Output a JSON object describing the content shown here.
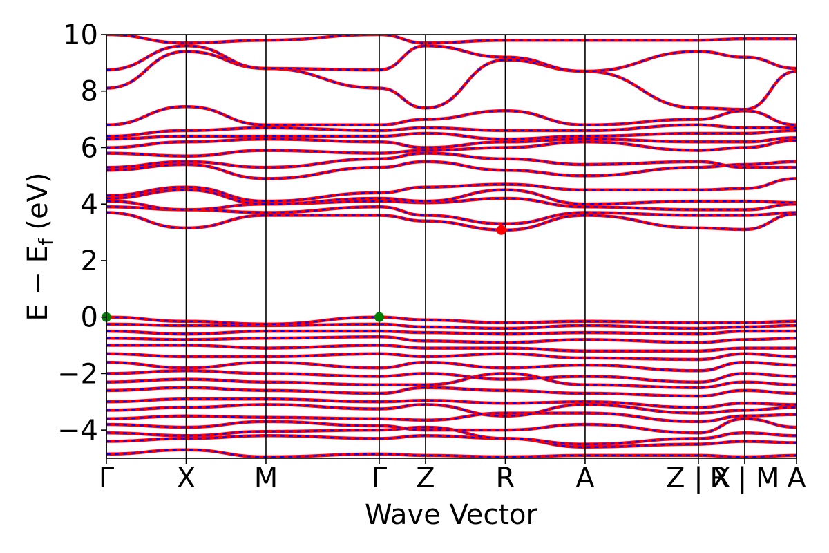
{
  "chart_data": {
    "type": "line",
    "title": "",
    "xlabel": "Wave Vector",
    "ylabel": "E − E",
    "ylabel_sub": "f",
    "ylabel_unit": " (eV)",
    "ylim": [
      -5,
      10
    ],
    "yticks": [
      {
        "value": 10,
        "label": "10"
      },
      {
        "value": 8,
        "label": "8"
      },
      {
        "value": 6,
        "label": "6"
      },
      {
        "value": 4,
        "label": "4"
      },
      {
        "value": 2,
        "label": "2"
      },
      {
        "value": 0,
        "label": "0"
      },
      {
        "value": -2,
        "label": "−2"
      },
      {
        "value": -4,
        "label": "−4"
      }
    ],
    "xlim": [
      0,
      8.65
    ],
    "kpoints": [
      {
        "x": 0.0,
        "label": "Γ"
      },
      {
        "x": 1.0,
        "label": "X"
      },
      {
        "x": 2.0,
        "label": "M"
      },
      {
        "x": 3.42,
        "label": "Γ"
      },
      {
        "x": 4.0,
        "label": "Z"
      },
      {
        "x": 5.0,
        "label": "R"
      },
      {
        "x": 6.0,
        "label": "A"
      },
      {
        "x": 7.42,
        "label": "Z | X"
      },
      {
        "x": 8.0,
        "label": "R | M"
      },
      {
        "x": 8.65,
        "label": "A"
      }
    ],
    "grid": false,
    "legend": "none",
    "series_styles": [
      {
        "color": "#ff0000",
        "style": "solid"
      },
      {
        "color": "#0000ff",
        "style": "dashed"
      }
    ],
    "markers": [
      {
        "x": 0.0,
        "y": 0.0,
        "color": "#008000",
        "kind": "vbm"
      },
      {
        "x": 3.42,
        "y": 0.0,
        "color": "#008000",
        "kind": "vbm"
      },
      {
        "x": 4.95,
        "y": 3.08,
        "color": "#ff0000",
        "kind": "cbm"
      }
    ],
    "bands": [
      [
        [
          0,
          -4.85
        ],
        [
          1,
          -4.7
        ],
        [
          2,
          -4.95
        ],
        [
          3.42,
          -4.85
        ],
        [
          4,
          -4.9
        ],
        [
          5,
          -4.95
        ],
        [
          6,
          -4.9
        ],
        [
          7.42,
          -4.9
        ],
        [
          8,
          -4.95
        ],
        [
          8.65,
          -4.9
        ]
      ],
      [
        [
          0,
          -4.4
        ],
        [
          1,
          -4.3
        ],
        [
          2,
          -4.2
        ],
        [
          3.42,
          -4.3
        ],
        [
          4,
          -4.2
        ],
        [
          5,
          -4.3
        ],
        [
          6,
          -4.6
        ],
        [
          7.42,
          -4.5
        ],
        [
          8,
          -4.4
        ],
        [
          8.65,
          -4.45
        ]
      ],
      [
        [
          0,
          -4.1
        ],
        [
          1,
          -4.2
        ],
        [
          2,
          -4.05
        ],
        [
          3.42,
          -4.0
        ],
        [
          4,
          -3.9
        ],
        [
          5,
          -4.3
        ],
        [
          6,
          -4.5
        ],
        [
          7.42,
          -4.3
        ],
        [
          8,
          -4.1
        ],
        [
          8.65,
          -4.2
        ]
      ],
      [
        [
          0,
          -3.8
        ],
        [
          1,
          -3.9
        ],
        [
          2,
          -3.7
        ],
        [
          3.42,
          -3.85
        ],
        [
          4,
          -4.0
        ],
        [
          5,
          -4.0
        ],
        [
          6,
          -3.8
        ],
        [
          7.42,
          -4.1
        ],
        [
          8,
          -3.6
        ],
        [
          8.65,
          -3.9
        ]
      ],
      [
        [
          0,
          -3.6
        ],
        [
          1,
          -3.5
        ],
        [
          2,
          -3.55
        ],
        [
          3.42,
          -3.6
        ],
        [
          4,
          -3.65
        ],
        [
          5,
          -3.4
        ],
        [
          6,
          -3.4
        ],
        [
          7.42,
          -3.7
        ],
        [
          8,
          -3.5
        ],
        [
          8.65,
          -3.45
        ]
      ],
      [
        [
          0,
          -3.3
        ],
        [
          1,
          -3.2
        ],
        [
          2,
          -3.1
        ],
        [
          3.42,
          -3.25
        ],
        [
          4,
          -3.1
        ],
        [
          5,
          -3.5
        ],
        [
          6,
          -3.1
        ],
        [
          7.42,
          -3.4
        ],
        [
          8,
          -3.3
        ],
        [
          8.65,
          -3.2
        ]
      ],
      [
        [
          0,
          -3.0
        ],
        [
          1,
          -2.9
        ],
        [
          2,
          -2.9
        ],
        [
          3.42,
          -3.0
        ],
        [
          4,
          -2.95
        ],
        [
          5,
          -3.05
        ],
        [
          6,
          -3.0
        ],
        [
          7.42,
          -3.2
        ],
        [
          8,
          -3.05
        ],
        [
          8.65,
          -3.1
        ]
      ],
      [
        [
          0,
          -2.6
        ],
        [
          1,
          -2.5
        ],
        [
          2,
          -2.6
        ],
        [
          3.42,
          -2.7
        ],
        [
          4,
          -2.5
        ],
        [
          5,
          -2.6
        ],
        [
          6,
          -2.7
        ],
        [
          7.42,
          -2.8
        ],
        [
          8,
          -2.6
        ],
        [
          8.65,
          -2.7
        ]
      ],
      [
        [
          0,
          -2.3
        ],
        [
          1,
          -2.2
        ],
        [
          2,
          -2.3
        ],
        [
          3.42,
          -2.4
        ],
        [
          4,
          -2.4
        ],
        [
          5,
          -2.0
        ],
        [
          6,
          -2.4
        ],
        [
          7.42,
          -2.5
        ],
        [
          8,
          -2.3
        ],
        [
          8.65,
          -2.4
        ]
      ],
      [
        [
          0,
          -2.0
        ],
        [
          1,
          -1.9
        ],
        [
          2,
          -2.0
        ],
        [
          3.42,
          -2.1
        ],
        [
          4,
          -2.0
        ],
        [
          5,
          -2.2
        ],
        [
          6,
          -2.1
        ],
        [
          7.42,
          -2.3
        ],
        [
          8,
          -2.0
        ],
        [
          8.65,
          -2.1
        ]
      ],
      [
        [
          0,
          -1.6
        ],
        [
          1,
          -1.8
        ],
        [
          2,
          -1.6
        ],
        [
          3.42,
          -1.8
        ],
        [
          4,
          -1.6
        ],
        [
          5,
          -1.8
        ],
        [
          6,
          -1.7
        ],
        [
          7.42,
          -1.9
        ],
        [
          8,
          -1.6
        ],
        [
          8.65,
          -1.7
        ]
      ],
      [
        [
          0,
          -1.3
        ],
        [
          1,
          -1.4
        ],
        [
          2,
          -1.4
        ],
        [
          3.42,
          -1.3
        ],
        [
          4,
          -1.4
        ],
        [
          5,
          -1.3
        ],
        [
          6,
          -1.45
        ],
        [
          7.42,
          -1.5
        ],
        [
          8,
          -1.3
        ],
        [
          8.65,
          -1.4
        ]
      ],
      [
        [
          0,
          -1.0
        ],
        [
          1,
          -1.0
        ],
        [
          2,
          -1.1
        ],
        [
          3.42,
          -1.0
        ],
        [
          4,
          -1.1
        ],
        [
          5,
          -1.1
        ],
        [
          6,
          -1.2
        ],
        [
          7.42,
          -1.2
        ],
        [
          8,
          -1.1
        ],
        [
          8.65,
          -1.1
        ]
      ],
      [
        [
          0,
          -0.75
        ],
        [
          1,
          -0.8
        ],
        [
          2,
          -0.75
        ],
        [
          3.42,
          -0.7
        ],
        [
          4,
          -0.85
        ],
        [
          5,
          -0.9
        ],
        [
          6,
          -0.8
        ],
        [
          7.42,
          -0.9
        ],
        [
          8,
          -0.8
        ],
        [
          8.65,
          -0.75
        ]
      ],
      [
        [
          0,
          -0.5
        ],
        [
          1,
          -0.6
        ],
        [
          2,
          -0.5
        ],
        [
          3.42,
          -0.5
        ],
        [
          4,
          -0.55
        ],
        [
          5,
          -0.6
        ],
        [
          6,
          -0.55
        ],
        [
          7.42,
          -0.6
        ],
        [
          8,
          -0.5
        ],
        [
          8.65,
          -0.5
        ]
      ],
      [
        [
          0,
          -0.25
        ],
        [
          1,
          -0.3
        ],
        [
          2,
          -0.3
        ],
        [
          3.42,
          -0.25
        ],
        [
          4,
          -0.35
        ],
        [
          5,
          -0.4
        ],
        [
          6,
          -0.3
        ],
        [
          7.42,
          -0.4
        ],
        [
          8,
          -0.35
        ],
        [
          8.65,
          -0.3
        ]
      ],
      [
        [
          0,
          0.0
        ],
        [
          1,
          -0.15
        ],
        [
          2,
          -0.25
        ],
        [
          3.42,
          0.0
        ],
        [
          4,
          -0.1
        ],
        [
          5,
          -0.2
        ],
        [
          6,
          -0.15
        ],
        [
          7.42,
          -0.2
        ],
        [
          8,
          -0.2
        ],
        [
          8.65,
          -0.15
        ]
      ],
      [
        [
          0,
          3.7
        ],
        [
          1,
          3.15
        ],
        [
          2,
          3.6
        ],
        [
          3.42,
          3.6
        ],
        [
          4,
          3.4
        ],
        [
          5,
          3.08
        ],
        [
          6,
          3.6
        ],
        [
          7.42,
          3.15
        ],
        [
          8,
          3.1
        ],
        [
          8.65,
          3.65
        ]
      ],
      [
        [
          0,
          3.9
        ],
        [
          1,
          3.8
        ],
        [
          2,
          3.7
        ],
        [
          3.42,
          3.9
        ],
        [
          4,
          3.6
        ],
        [
          5,
          3.3
        ],
        [
          6,
          3.7
        ],
        [
          7.42,
          3.6
        ],
        [
          8,
          3.6
        ],
        [
          8.65,
          3.7
        ]
      ],
      [
        [
          0,
          4.1
        ],
        [
          1,
          3.8
        ],
        [
          2,
          4.0
        ],
        [
          3.42,
          4.1
        ],
        [
          4,
          4.05
        ],
        [
          5,
          4.2
        ],
        [
          6,
          3.9
        ],
        [
          7.42,
          3.8
        ],
        [
          8,
          3.8
        ],
        [
          8.65,
          4.0
        ]
      ],
      [
        [
          0,
          4.2
        ],
        [
          1,
          4.5
        ],
        [
          2,
          4.0
        ],
        [
          3.42,
          4.2
        ],
        [
          4,
          4.1
        ],
        [
          5,
          4.5
        ],
        [
          6,
          4.0
        ],
        [
          7.42,
          4.1
        ],
        [
          8,
          4.1
        ],
        [
          8.65,
          4.05
        ]
      ],
      [
        [
          0,
          4.3
        ],
        [
          1,
          4.6
        ],
        [
          2,
          4.1
        ],
        [
          3.42,
          4.4
        ],
        [
          4,
          4.6
        ],
        [
          5,
          4.7
        ],
        [
          6,
          4.5
        ],
        [
          7.42,
          4.5
        ],
        [
          8,
          4.55
        ],
        [
          8.65,
          4.9
        ]
      ],
      [
        [
          0,
          5.2
        ],
        [
          1,
          5.4
        ],
        [
          2,
          4.9
        ],
        [
          3.42,
          5.3
        ],
        [
          4,
          5.5
        ],
        [
          5,
          5.2
        ],
        [
          6,
          5.0
        ],
        [
          7.42,
          5.3
        ],
        [
          8,
          5.4
        ],
        [
          8.65,
          5.5
        ]
      ],
      [
        [
          0,
          5.3
        ],
        [
          1,
          5.5
        ],
        [
          2,
          5.3
        ],
        [
          3.42,
          5.6
        ],
        [
          4,
          5.8
        ],
        [
          5,
          5.6
        ],
        [
          6,
          5.4
        ],
        [
          7.42,
          5.5
        ],
        [
          8,
          5.3
        ],
        [
          8.65,
          5.3
        ]
      ],
      [
        [
          0,
          5.8
        ],
        [
          1,
          5.7
        ],
        [
          2,
          5.9
        ],
        [
          3.42,
          5.8
        ],
        [
          4,
          5.9
        ],
        [
          5,
          6.0
        ],
        [
          6,
          6.2
        ],
        [
          7.42,
          5.9
        ],
        [
          8,
          6.0
        ],
        [
          8.65,
          6.25
        ]
      ],
      [
        [
          0,
          6.0
        ],
        [
          1,
          6.2
        ],
        [
          2,
          6.3
        ],
        [
          3.42,
          6.2
        ],
        [
          4,
          6.0
        ],
        [
          5,
          6.2
        ],
        [
          6,
          6.3
        ],
        [
          7.42,
          6.2
        ],
        [
          8,
          6.2
        ],
        [
          8.65,
          6.35
        ]
      ],
      [
        [
          0,
          6.3
        ],
        [
          1,
          6.4
        ],
        [
          2,
          6.4
        ],
        [
          3.42,
          6.4
        ],
        [
          4,
          6.5
        ],
        [
          5,
          6.3
        ],
        [
          6,
          6.4
        ],
        [
          7.42,
          6.5
        ],
        [
          8,
          6.5
        ],
        [
          8.65,
          6.6
        ]
      ],
      [
        [
          0,
          6.4
        ],
        [
          1,
          6.6
        ],
        [
          2,
          6.7
        ],
        [
          3.42,
          6.6
        ],
        [
          4,
          6.7
        ],
        [
          5,
          6.6
        ],
        [
          6,
          6.6
        ],
        [
          7.42,
          6.8
        ],
        [
          8,
          6.7
        ],
        [
          8.65,
          6.7
        ]
      ],
      [
        [
          0,
          6.8
        ],
        [
          1,
          7.45
        ],
        [
          2,
          6.8
        ],
        [
          3.42,
          6.8
        ],
        [
          4,
          7.0
        ],
        [
          5,
          7.3
        ],
        [
          6,
          6.8
        ],
        [
          7.42,
          7.0
        ],
        [
          8,
          7.3
        ],
        [
          8.65,
          6.8
        ]
      ],
      [
        [
          0,
          8.1
        ],
        [
          1,
          9.4
        ],
        [
          2,
          8.8
        ],
        [
          3.42,
          8.1
        ],
        [
          4,
          7.4
        ],
        [
          5,
          9.1
        ],
        [
          6,
          8.7
        ],
        [
          7.42,
          7.4
        ],
        [
          8,
          7.35
        ],
        [
          8.65,
          8.7
        ]
      ],
      [
        [
          0,
          8.75
        ],
        [
          1,
          9.6
        ],
        [
          2,
          8.8
        ],
        [
          3.42,
          8.75
        ],
        [
          4,
          9.6
        ],
        [
          5,
          9.2
        ],
        [
          6,
          8.7
        ],
        [
          7.42,
          9.4
        ],
        [
          8,
          9.2
        ],
        [
          8.65,
          8.8
        ]
      ],
      [
        [
          0,
          10.0
        ],
        [
          1,
          9.7
        ],
        [
          2,
          9.8
        ],
        [
          3.42,
          10.0
        ],
        [
          4,
          9.7
        ],
        [
          5,
          9.8
        ],
        [
          6,
          9.8
        ],
        [
          7.42,
          9.8
        ],
        [
          8,
          9.85
        ],
        [
          8.65,
          9.85
        ]
      ]
    ]
  }
}
